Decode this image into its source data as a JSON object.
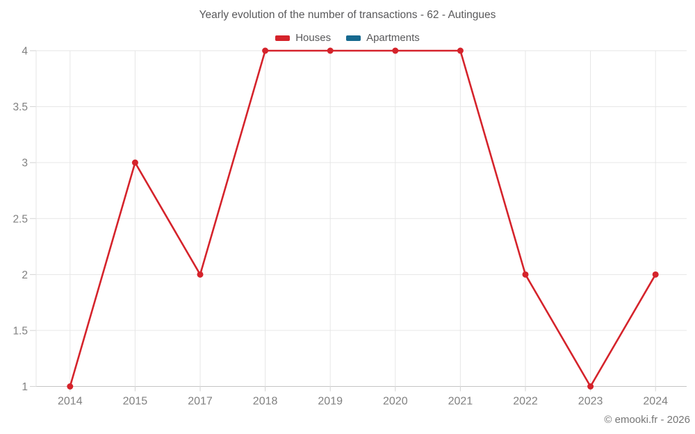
{
  "header": {
    "title": "Yearly evolution of the number of transactions - 62 - Autingues"
  },
  "chart_data": {
    "type": "line",
    "title": "Yearly evolution of the number of transactions - 62 - Autingues",
    "categories": [
      "2014",
      "2015",
      "2017",
      "2018",
      "2019",
      "2020",
      "2021",
      "2022",
      "2023",
      "2024"
    ],
    "series": [
      {
        "name": "Houses",
        "color": "#d5232b",
        "values": [
          1,
          3,
          2,
          4,
          4,
          4,
          4,
          2,
          1,
          2
        ]
      },
      {
        "name": "Apartments",
        "color": "#16698f",
        "values": []
      }
    ],
    "xlabel": "",
    "ylabel": "",
    "ylim": [
      1,
      4
    ],
    "yticks": [
      1,
      1.5,
      2,
      2.5,
      3,
      3.5,
      4
    ],
    "grid": true,
    "legend_position": "top"
  },
  "footer": {
    "copyright": "© emooki.fr - 2026"
  },
  "colors": {
    "background": "#ffffff",
    "gridline": "#e6e6e6",
    "axis_line": "#c4c4c4",
    "tick_mark": "#d2d2d2",
    "title_text": "#58585a",
    "axis_text": "#808080",
    "footer_text": "#757575",
    "houses_series": "#d5232b",
    "apartments_series": "#16698f"
  }
}
